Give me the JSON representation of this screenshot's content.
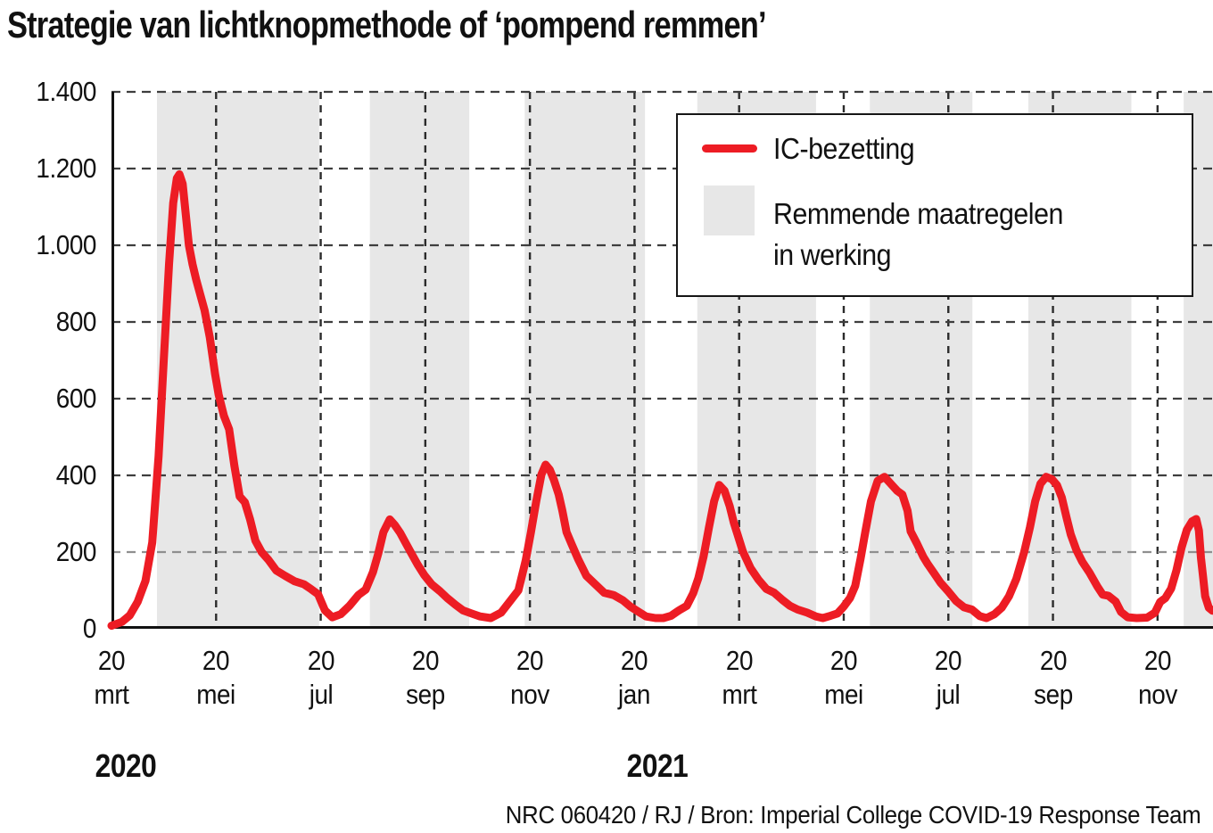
{
  "title": "Strategie van lichtknopmethode of ‘pompend remmen’",
  "legend": {
    "line_label": "IC-bezetting",
    "band_label_line1": "Remmende maatregelen",
    "band_label_line2": "in werking"
  },
  "footer": {
    "year_left": "2020",
    "year_right": "2021",
    "source": "NRC 060420 / RJ / Bron: Imperial College COVID-19 Response Team"
  },
  "colors": {
    "line": "#ed1c24",
    "band": "#e7e7e7",
    "grid_h": "#3e3e3e",
    "grid_h_light": "#8f8f8f",
    "grid_v": "#2b2b2b",
    "axis": "#111111"
  },
  "chart_data": {
    "type": "line",
    "title": "Strategie van lichtknopmethode of ‘pompend remmen’",
    "xlabel": "",
    "ylabel": "IC-bezetting",
    "x_unit": "months after 20 mrt 2020",
    "x_range": [
      0,
      21.06
    ],
    "y_range": [
      0,
      1400
    ],
    "grid": "dashed",
    "legend_position": "top-right",
    "y_ticks": [
      {
        "value": 0,
        "label": "0"
      },
      {
        "value": 200,
        "label": "200"
      },
      {
        "value": 400,
        "label": "400"
      },
      {
        "value": 600,
        "label": "600"
      },
      {
        "value": 800,
        "label": "800"
      },
      {
        "value": 1000,
        "label": "1.000"
      },
      {
        "value": 1200,
        "label": "1.200"
      },
      {
        "value": 1400,
        "label": "1.400"
      }
    ],
    "x_ticks": [
      {
        "m": 0,
        "day": "20",
        "month": "mrt"
      },
      {
        "m": 2,
        "day": "20",
        "month": "mei"
      },
      {
        "m": 4,
        "day": "20",
        "month": "jul"
      },
      {
        "m": 6,
        "day": "20",
        "month": "sep"
      },
      {
        "m": 8,
        "day": "20",
        "month": "nov"
      },
      {
        "m": 10,
        "day": "20",
        "month": "jan"
      },
      {
        "m": 12,
        "day": "20",
        "month": "mrt"
      },
      {
        "m": 14,
        "day": "20",
        "month": "mei"
      },
      {
        "m": 16,
        "day": "20",
        "month": "jul"
      },
      {
        "m": 18,
        "day": "20",
        "month": "sep"
      },
      {
        "m": 20,
        "day": "20",
        "month": "nov"
      }
    ],
    "bands": {
      "name": "Remmende maatregelen in werking",
      "ranges": [
        [
          0.87,
          3.97
        ],
        [
          4.94,
          6.84
        ],
        [
          7.9,
          10.2
        ],
        [
          11.2,
          13.47
        ],
        [
          14.5,
          16.46
        ],
        [
          17.53,
          19.5
        ],
        [
          20.5,
          21.06
        ]
      ]
    },
    "series": [
      {
        "name": "IC-bezetting",
        "points": [
          [
            0,
            8
          ],
          [
            0.2,
            18
          ],
          [
            0.35,
            35
          ],
          [
            0.5,
            70
          ],
          [
            0.65,
            125
          ],
          [
            0.78,
            225
          ],
          [
            0.9,
            450
          ],
          [
            1.0,
            700
          ],
          [
            1.1,
            950
          ],
          [
            1.18,
            1110
          ],
          [
            1.25,
            1175
          ],
          [
            1.3,
            1185
          ],
          [
            1.36,
            1160
          ],
          [
            1.42,
            1080
          ],
          [
            1.48,
            1000
          ],
          [
            1.55,
            950
          ],
          [
            1.62,
            910
          ],
          [
            1.7,
            870
          ],
          [
            1.78,
            830
          ],
          [
            1.88,
            760
          ],
          [
            1.98,
            665
          ],
          [
            2.05,
            610
          ],
          [
            2.15,
            555
          ],
          [
            2.25,
            520
          ],
          [
            2.35,
            425
          ],
          [
            2.45,
            345
          ],
          [
            2.55,
            330
          ],
          [
            2.65,
            285
          ],
          [
            2.75,
            230
          ],
          [
            2.87,
            200
          ],
          [
            3.0,
            180
          ],
          [
            3.15,
            152
          ],
          [
            3.32,
            138
          ],
          [
            3.5,
            124
          ],
          [
            3.68,
            116
          ],
          [
            3.82,
            103
          ],
          [
            3.95,
            90
          ],
          [
            4.08,
            48
          ],
          [
            4.22,
            30
          ],
          [
            4.38,
            38
          ],
          [
            4.55,
            60
          ],
          [
            4.72,
            88
          ],
          [
            4.86,
            102
          ],
          [
            5.0,
            148
          ],
          [
            5.1,
            196
          ],
          [
            5.2,
            252
          ],
          [
            5.32,
            285
          ],
          [
            5.42,
            270
          ],
          [
            5.52,
            250
          ],
          [
            5.63,
            222
          ],
          [
            5.72,
            200
          ],
          [
            5.85,
            168
          ],
          [
            5.98,
            140
          ],
          [
            6.12,
            116
          ],
          [
            6.28,
            98
          ],
          [
            6.42,
            80
          ],
          [
            6.58,
            62
          ],
          [
            6.72,
            48
          ],
          [
            6.88,
            40
          ],
          [
            7.05,
            32
          ],
          [
            7.25,
            28
          ],
          [
            7.45,
            42
          ],
          [
            7.62,
            72
          ],
          [
            7.78,
            100
          ],
          [
            7.92,
            178
          ],
          [
            8.02,
            252
          ],
          [
            8.12,
            332
          ],
          [
            8.22,
            402
          ],
          [
            8.3,
            428
          ],
          [
            8.38,
            415
          ],
          [
            8.46,
            388
          ],
          [
            8.55,
            350
          ],
          [
            8.62,
            308
          ],
          [
            8.7,
            252
          ],
          [
            8.8,
            220
          ],
          [
            8.92,
            182
          ],
          [
            9.08,
            138
          ],
          [
            9.25,
            116
          ],
          [
            9.42,
            94
          ],
          [
            9.6,
            88
          ],
          [
            9.78,
            74
          ],
          [
            9.92,
            58
          ],
          [
            10.08,
            44
          ],
          [
            10.22,
            32
          ],
          [
            10.4,
            28
          ],
          [
            10.55,
            28
          ],
          [
            10.7,
            34
          ],
          [
            10.85,
            48
          ],
          [
            11.0,
            60
          ],
          [
            11.12,
            92
          ],
          [
            11.22,
            132
          ],
          [
            11.32,
            188
          ],
          [
            11.42,
            262
          ],
          [
            11.52,
            332
          ],
          [
            11.62,
            375
          ],
          [
            11.72,
            360
          ],
          [
            11.82,
            320
          ],
          [
            11.9,
            276
          ],
          [
            11.97,
            246
          ],
          [
            12.07,
            202
          ],
          [
            12.22,
            158
          ],
          [
            12.37,
            128
          ],
          [
            12.52,
            104
          ],
          [
            12.67,
            94
          ],
          [
            12.82,
            76
          ],
          [
            12.97,
            60
          ],
          [
            13.12,
            50
          ],
          [
            13.3,
            42
          ],
          [
            13.47,
            32
          ],
          [
            13.6,
            28
          ],
          [
            13.75,
            34
          ],
          [
            13.88,
            40
          ],
          [
            14.0,
            58
          ],
          [
            14.12,
            80
          ],
          [
            14.22,
            112
          ],
          [
            14.32,
            182
          ],
          [
            14.42,
            258
          ],
          [
            14.52,
            332
          ],
          [
            14.65,
            386
          ],
          [
            14.78,
            396
          ],
          [
            14.9,
            378
          ],
          [
            15.02,
            360
          ],
          [
            15.12,
            350
          ],
          [
            15.22,
            308
          ],
          [
            15.28,
            254
          ],
          [
            15.4,
            222
          ],
          [
            15.52,
            188
          ],
          [
            15.6,
            170
          ],
          [
            15.72,
            146
          ],
          [
            15.85,
            120
          ],
          [
            16.0,
            97
          ],
          [
            16.15,
            72
          ],
          [
            16.3,
            56
          ],
          [
            16.45,
            50
          ],
          [
            16.6,
            33
          ],
          [
            16.73,
            28
          ],
          [
            16.88,
            38
          ],
          [
            17.02,
            55
          ],
          [
            17.16,
            85
          ],
          [
            17.3,
            130
          ],
          [
            17.45,
            200
          ],
          [
            17.56,
            265
          ],
          [
            17.66,
            332
          ],
          [
            17.76,
            378
          ],
          [
            17.87,
            396
          ],
          [
            17.98,
            390
          ],
          [
            18.08,
            374
          ],
          [
            18.17,
            342
          ],
          [
            18.26,
            290
          ],
          [
            18.34,
            246
          ],
          [
            18.45,
            205
          ],
          [
            18.56,
            175
          ],
          [
            18.7,
            146
          ],
          [
            18.85,
            110
          ],
          [
            18.95,
            89
          ],
          [
            19.06,
            86
          ],
          [
            19.2,
            71
          ],
          [
            19.3,
            44
          ],
          [
            19.43,
            30
          ],
          [
            19.6,
            28
          ],
          [
            19.8,
            29
          ],
          [
            19.95,
            42
          ],
          [
            20.05,
            70
          ],
          [
            20.15,
            80
          ],
          [
            20.26,
            105
          ],
          [
            20.36,
            152
          ],
          [
            20.46,
            212
          ],
          [
            20.56,
            258
          ],
          [
            20.66,
            280
          ],
          [
            20.74,
            286
          ],
          [
            20.79,
            256
          ],
          [
            20.83,
            185
          ],
          [
            20.87,
            135
          ],
          [
            20.91,
            85
          ],
          [
            20.98,
            55
          ],
          [
            21.05,
            47
          ]
        ]
      }
    ]
  }
}
